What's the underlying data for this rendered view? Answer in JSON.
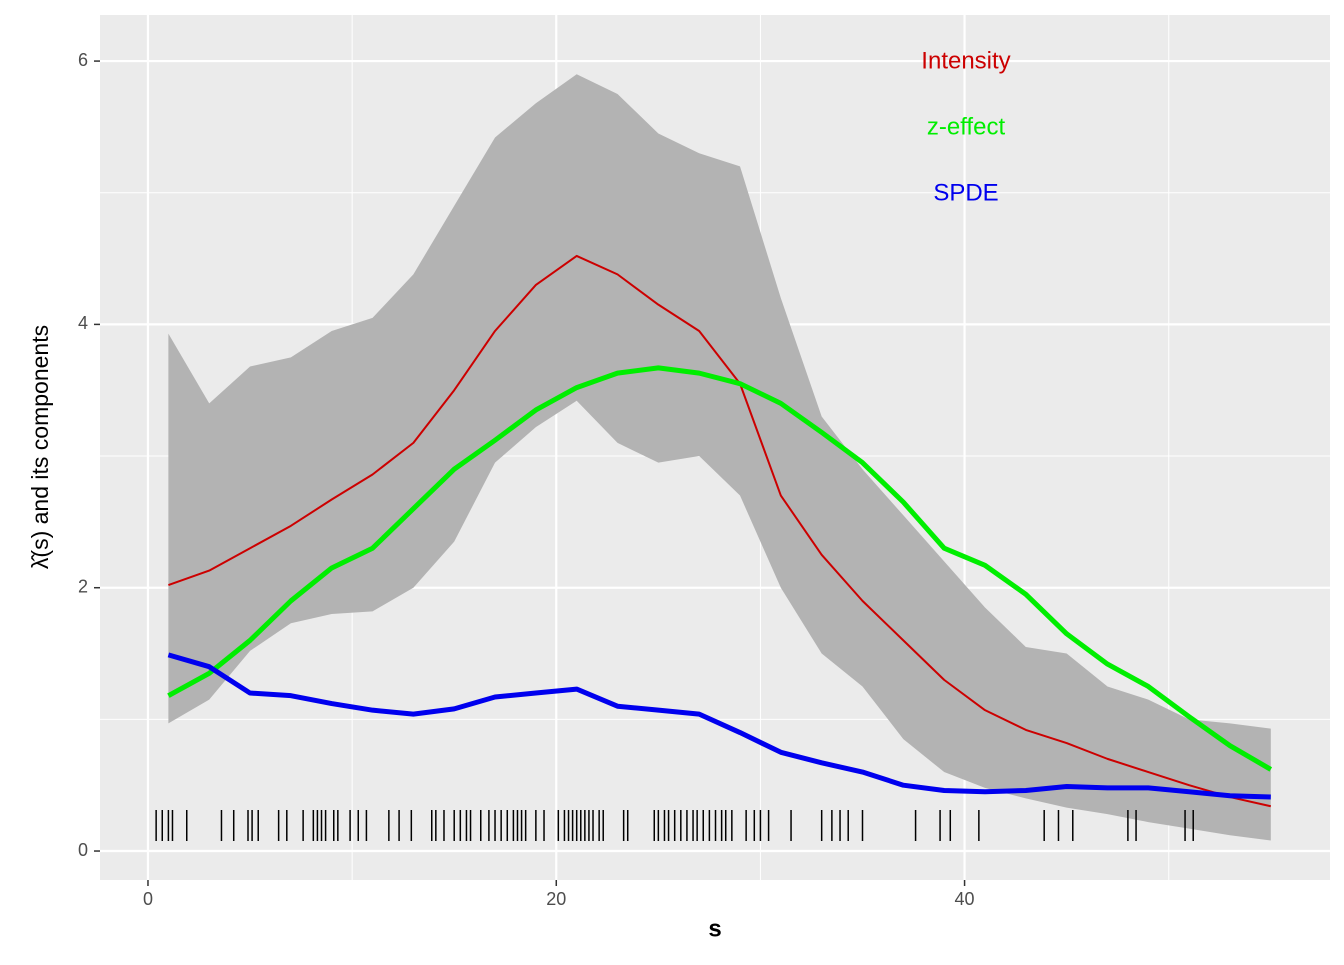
{
  "chart_data": {
    "type": "line",
    "xlabel": "s",
    "ylabel": "λ̂(s)  and its components",
    "x": [
      1,
      3,
      5,
      7,
      9,
      11,
      13,
      15,
      17,
      19,
      21,
      23,
      25,
      27,
      29,
      31,
      33,
      35,
      37,
      39,
      41,
      43,
      45,
      47,
      49,
      51,
      53,
      55
    ],
    "band": {
      "color": "#b3b3b3",
      "lower": [
        0.97,
        1.15,
        1.52,
        1.73,
        1.8,
        1.82,
        2.0,
        2.35,
        2.95,
        3.22,
        3.42,
        3.1,
        2.95,
        3.0,
        2.7,
        2.0,
        1.5,
        1.25,
        0.85,
        0.6,
        0.48,
        0.4,
        0.33,
        0.28,
        0.22,
        0.17,
        0.12,
        0.08
      ],
      "upper": [
        3.93,
        3.4,
        3.68,
        3.75,
        3.95,
        4.05,
        4.38,
        4.9,
        5.42,
        5.68,
        5.9,
        5.75,
        5.45,
        5.3,
        5.2,
        4.2,
        3.3,
        2.9,
        2.55,
        2.2,
        1.85,
        1.55,
        1.5,
        1.25,
        1.15,
        1.0,
        0.97,
        0.93
      ]
    },
    "series": [
      {
        "name": "Intensity",
        "color": "#cc0000",
        "width": 2,
        "values": [
          2.02,
          2.13,
          2.3,
          2.47,
          2.67,
          2.86,
          3.1,
          3.5,
          3.95,
          4.3,
          4.52,
          4.38,
          4.15,
          3.95,
          3.55,
          2.7,
          2.25,
          1.9,
          1.6,
          1.3,
          1.07,
          0.92,
          0.82,
          0.7,
          0.6,
          0.5,
          0.41,
          0.34
        ]
      },
      {
        "name": "z-effect",
        "color": "#00ee00",
        "width": 5,
        "values": [
          1.18,
          1.35,
          1.6,
          1.9,
          2.15,
          2.3,
          2.6,
          2.9,
          3.12,
          3.35,
          3.52,
          3.63,
          3.67,
          3.63,
          3.55,
          3.4,
          3.18,
          2.95,
          2.65,
          2.3,
          2.17,
          1.95,
          1.65,
          1.42,
          1.25,
          1.02,
          0.8,
          0.62
        ]
      },
      {
        "name": "SPDE",
        "color": "#0000ee",
        "width": 5,
        "values": [
          1.49,
          1.4,
          1.2,
          1.18,
          1.12,
          1.07,
          1.04,
          1.08,
          1.17,
          1.2,
          1.23,
          1.1,
          1.07,
          1.04,
          0.9,
          0.75,
          0.67,
          0.6,
          0.5,
          0.46,
          0.45,
          0.46,
          0.49,
          0.48,
          0.48,
          0.45,
          0.42,
          0.41
        ]
      }
    ],
    "events": [
      0.4,
      0.7,
      1.0,
      1.2,
      1.9,
      3.6,
      4.2,
      4.9,
      5.1,
      5.4,
      6.4,
      6.8,
      7.6,
      8.1,
      8.3,
      8.5,
      8.7,
      9.1,
      9.3,
      9.9,
      10.3,
      10.7,
      11.8,
      12.3,
      12.9,
      13.9,
      14.1,
      14.5,
      15.0,
      15.3,
      15.6,
      15.8,
      16.3,
      16.7,
      17.0,
      17.3,
      17.6,
      17.9,
      18.1,
      18.3,
      18.5,
      19.0,
      19.4,
      20.1,
      20.4,
      20.6,
      20.8,
      21.0,
      21.2,
      21.4,
      21.6,
      21.8,
      22.1,
      22.3,
      23.3,
      23.5,
      24.8,
      25.0,
      25.3,
      25.5,
      25.8,
      26.1,
      26.4,
      26.7,
      26.9,
      27.2,
      27.5,
      27.8,
      28.1,
      28.3,
      28.6,
      29.3,
      29.7,
      30.0,
      30.4,
      31.5,
      33.0,
      33.5,
      33.9,
      34.3,
      35.0,
      37.6,
      38.8,
      39.3,
      40.7,
      43.9,
      44.6,
      45.3,
      48.0,
      48.4,
      50.8,
      51.2
    ],
    "xlim": [
      -2.35,
      57.9
    ],
    "ylim": [
      -0.22,
      6.35
    ],
    "xticks": [
      0,
      20,
      40
    ],
    "yticks": [
      0,
      2,
      4,
      6
    ],
    "grid": true
  }
}
